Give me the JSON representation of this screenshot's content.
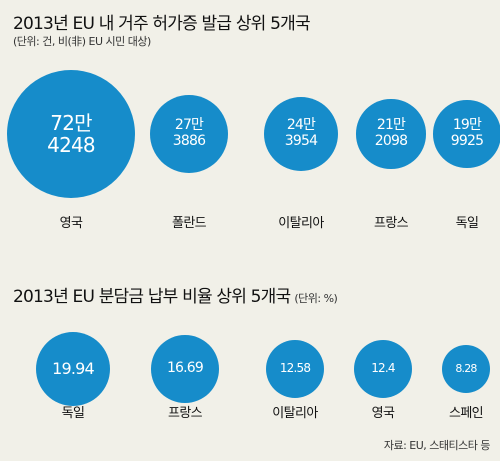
{
  "chart_data": [
    {
      "type": "bubble",
      "title": "2013년 EU 내 거주 허가증 발급 상위 5개국",
      "subtitle": "(단위: 건, 비(非) EU 시민 대상)",
      "categories": [
        "영국",
        "폴란드",
        "이탈리아",
        "프랑스",
        "독일"
      ],
      "values": [
        724248,
        273886,
        243954,
        212098,
        199925
      ],
      "value_labels": [
        [
          "72만",
          "4248"
        ],
        [
          "27만",
          "3886"
        ],
        [
          "24만",
          "3954"
        ],
        [
          "21만",
          "2098"
        ],
        [
          "19만",
          "9925"
        ]
      ]
    },
    {
      "type": "bubble",
      "title": "2013년 EU 분담금 납부 비율 상위 5개국",
      "unit": "(단위: %)",
      "categories": [
        "독일",
        "프랑스",
        "이탈리아",
        "영국",
        "스페인"
      ],
      "values": [
        19.94,
        16.69,
        12.58,
        12.4,
        8.28
      ],
      "value_labels": [
        "19.94",
        "16.69",
        "12.58",
        "12.4",
        "8.28"
      ]
    }
  ],
  "colors": {
    "bubble": "#168cca",
    "background": "#f1f0e8"
  },
  "source": "자료: EU, 스태티스타 등"
}
